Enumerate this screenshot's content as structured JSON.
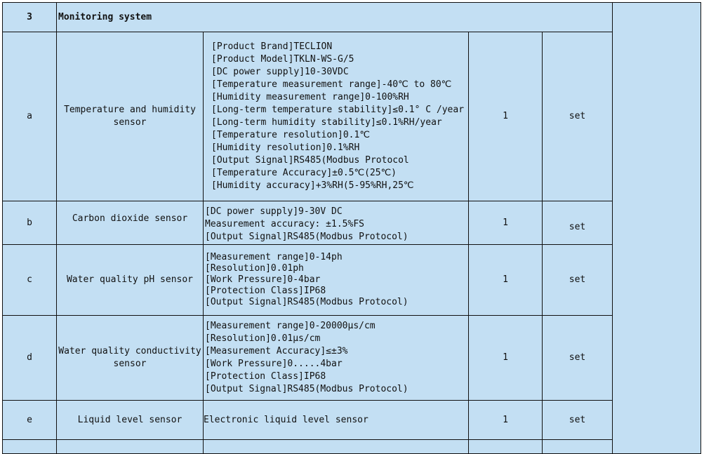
{
  "section": {
    "number": "3",
    "title": "Monitoring system"
  },
  "rows": [
    {
      "id": "a",
      "name": "Temperature and humidity sensor",
      "qty": "1",
      "unit": "set",
      "specs": [
        "[Product Brand]TECLION",
        "[Product Model]TKLN-WS-G/5",
        "[DC power supply]10-30VDC",
        "[Temperature measurement range]-40℃ to 80℃",
        "[Humidity measurement range]0-100%RH",
        "[Long-term temperature stability]≤0.1° C /year",
        "[Long-term humidity stability]≤0.1%RH/year",
        "[Temperature resolution]0.1℃",
        "[Humidity resolution]0.1%RH",
        "[Output Signal]RS485(Modbus Protocol",
        "[Temperature Accuracy]±0.5℃(25℃)",
        "[Humidity accuracy]+3%RH(5-95%RH,25℃"
      ]
    },
    {
      "id": "b",
      "name": "Carbon dioxide sensor",
      "qty": "1",
      "unit": "set",
      "specs": [
        "[DC power supply]9-30V DC",
        "Measurement accuracy: ±1.5%FS",
        "[Output Signal]RS485(Modbus Protocol)"
      ]
    },
    {
      "id": "c",
      "name": "Water quality pH sensor",
      "qty": "1",
      "unit": "set",
      "specs": [
        "[Measurement range]0-14ph",
        "[Resolution]0.01ph",
        "[Work Pressure]0-4bar",
        "[Protection Class]IP68",
        "[Output Signal]RS485(Modbus Protocol)"
      ]
    },
    {
      "id": "d",
      "name": "Water quality conductivity sensor",
      "qty": "1",
      "unit": "set",
      "specs": [
        "[Measurement range]0-20000μs/cm",
        "[Resolution]0.01μs/cm",
        "[Measurement Accuracy]≤±3%",
        "[Work Pressure]0.....4bar",
        "[Protection Class]IP68",
        "[Output Signal]RS485(Modbus Protocol)"
      ]
    },
    {
      "id": "e",
      "name": "Liquid level sensor",
      "qty": "1",
      "unit": "set",
      "specs": [
        "Electronic liquid level sensor"
      ]
    }
  ]
}
